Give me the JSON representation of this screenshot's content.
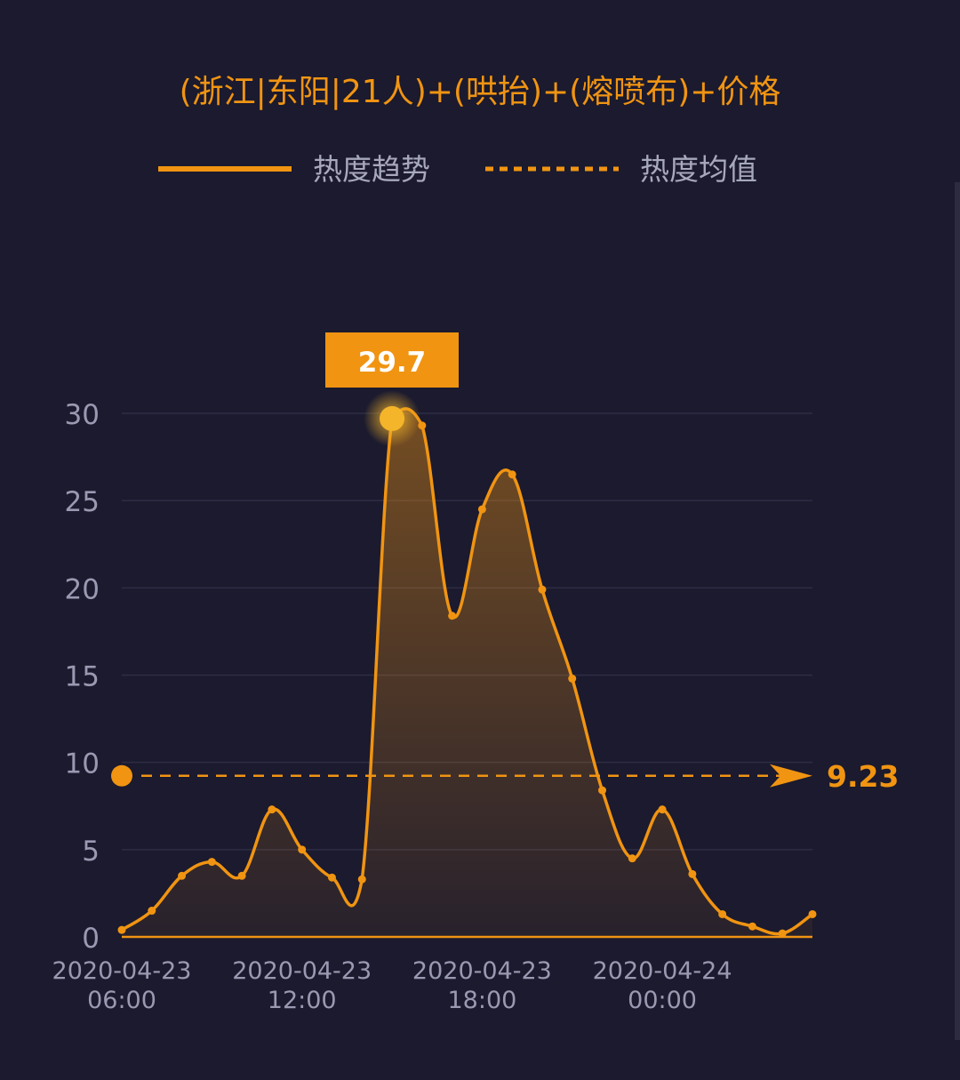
{
  "chart_data": {
    "type": "area",
    "title": "(浙江|东阳|21人)+(哄抬)+(熔喷布)+价格",
    "legend": [
      {
        "label": "热度趋势",
        "style": "solid"
      },
      {
        "label": "热度均值",
        "style": "dashed"
      }
    ],
    "legend_placement": "top-center",
    "x_tick_labels": [
      {
        "date": "2020-04-23",
        "time": "06:00",
        "at": "2020-04-23 06:00"
      },
      {
        "date": "2020-04-23",
        "time": "12:00",
        "at": "2020-04-23 12:00"
      },
      {
        "date": "2020-04-23",
        "time": "18:00",
        "at": "2020-04-23 18:00"
      },
      {
        "date": "2020-04-24",
        "time": "00:00",
        "at": "2020-04-24 00:00"
      }
    ],
    "y_ticks": [
      0,
      5,
      10,
      15,
      20,
      25,
      30
    ],
    "ylim": [
      0,
      30
    ],
    "grid": true,
    "series": [
      {
        "name": "热度趋势",
        "x": [
          "2020-04-23 06:00",
          "2020-04-23 07:00",
          "2020-04-23 08:00",
          "2020-04-23 09:00",
          "2020-04-23 10:00",
          "2020-04-23 11:00",
          "2020-04-23 12:00",
          "2020-04-23 13:00",
          "2020-04-23 14:00",
          "2020-04-23 15:00",
          "2020-04-23 16:00",
          "2020-04-23 17:00",
          "2020-04-23 18:00",
          "2020-04-23 19:00",
          "2020-04-23 20:00",
          "2020-04-23 21:00",
          "2020-04-23 22:00",
          "2020-04-23 23:00",
          "2020-04-24 00:00",
          "2020-04-24 01:00",
          "2020-04-24 02:00",
          "2020-04-24 03:00",
          "2020-04-24 04:00",
          "2020-04-24 05:00"
        ],
        "values": [
          0.4,
          1.5,
          3.5,
          4.3,
          3.5,
          7.3,
          5.0,
          3.4,
          3.3,
          29.7,
          29.3,
          18.4,
          24.5,
          26.5,
          19.9,
          14.8,
          8.4,
          4.5,
          7.3,
          3.6,
          1.3,
          0.6,
          0.2,
          1.3
        ]
      }
    ],
    "average": {
      "value": 9.23,
      "label": "9.23"
    },
    "peak": {
      "value": 29.7,
      "label": "29.7",
      "at": "2020-04-23 15:00"
    },
    "colors": {
      "background": "#1b1a2e",
      "line": "#f09412",
      "title": "#f09412",
      "axis_text": "#9a99b2",
      "legend_text": "#a8a8bd",
      "grid": "#2e2d45",
      "label_box": "#f09412",
      "label_text": "#ffffff"
    }
  }
}
